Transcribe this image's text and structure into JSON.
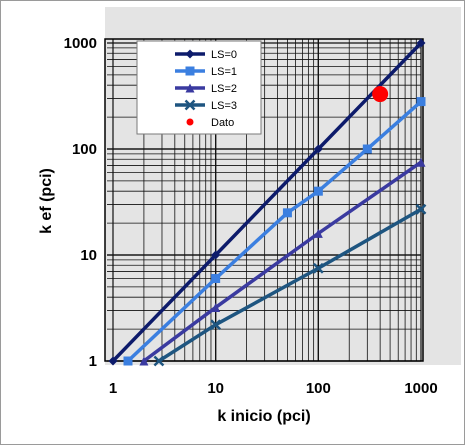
{
  "chart_data": {
    "type": "line",
    "xlabel": "k inicio (pci)",
    "ylabel": "k ef (pci)",
    "xscale": "log",
    "yscale": "log",
    "xlim": [
      1,
      1000
    ],
    "ylim": [
      1,
      1000
    ],
    "x_ticks": [
      "1",
      "10",
      "100",
      "1000"
    ],
    "y_ticks": [
      "1",
      "10",
      "100",
      "1000"
    ],
    "grid": true,
    "legend_position": "top-left",
    "series": [
      {
        "name": "LS=0",
        "color": "#0d1b6b",
        "marker": "diamond",
        "x": [
          1,
          10,
          100,
          1000
        ],
        "y": [
          1,
          10,
          100,
          1000
        ]
      },
      {
        "name": "LS=1",
        "color": "#3b7fe0",
        "marker": "square",
        "x": [
          1.4,
          10,
          50,
          100,
          300,
          1000
        ],
        "y": [
          1,
          6,
          25,
          40,
          100,
          280
        ]
      },
      {
        "name": "LS=2",
        "color": "#3a3aa0",
        "marker": "triangle",
        "x": [
          2,
          10,
          100,
          1000
        ],
        "y": [
          1,
          3.2,
          16,
          75
        ]
      },
      {
        "name": "LS=3",
        "color": "#1e5580",
        "marker": "cross",
        "x": [
          2.8,
          10,
          100,
          1000
        ],
        "y": [
          1,
          2.2,
          7.5,
          27
        ]
      },
      {
        "name": "Dato",
        "color": "#ff0000",
        "marker": "circle",
        "x": [
          400
        ],
        "y": [
          330
        ]
      }
    ]
  }
}
